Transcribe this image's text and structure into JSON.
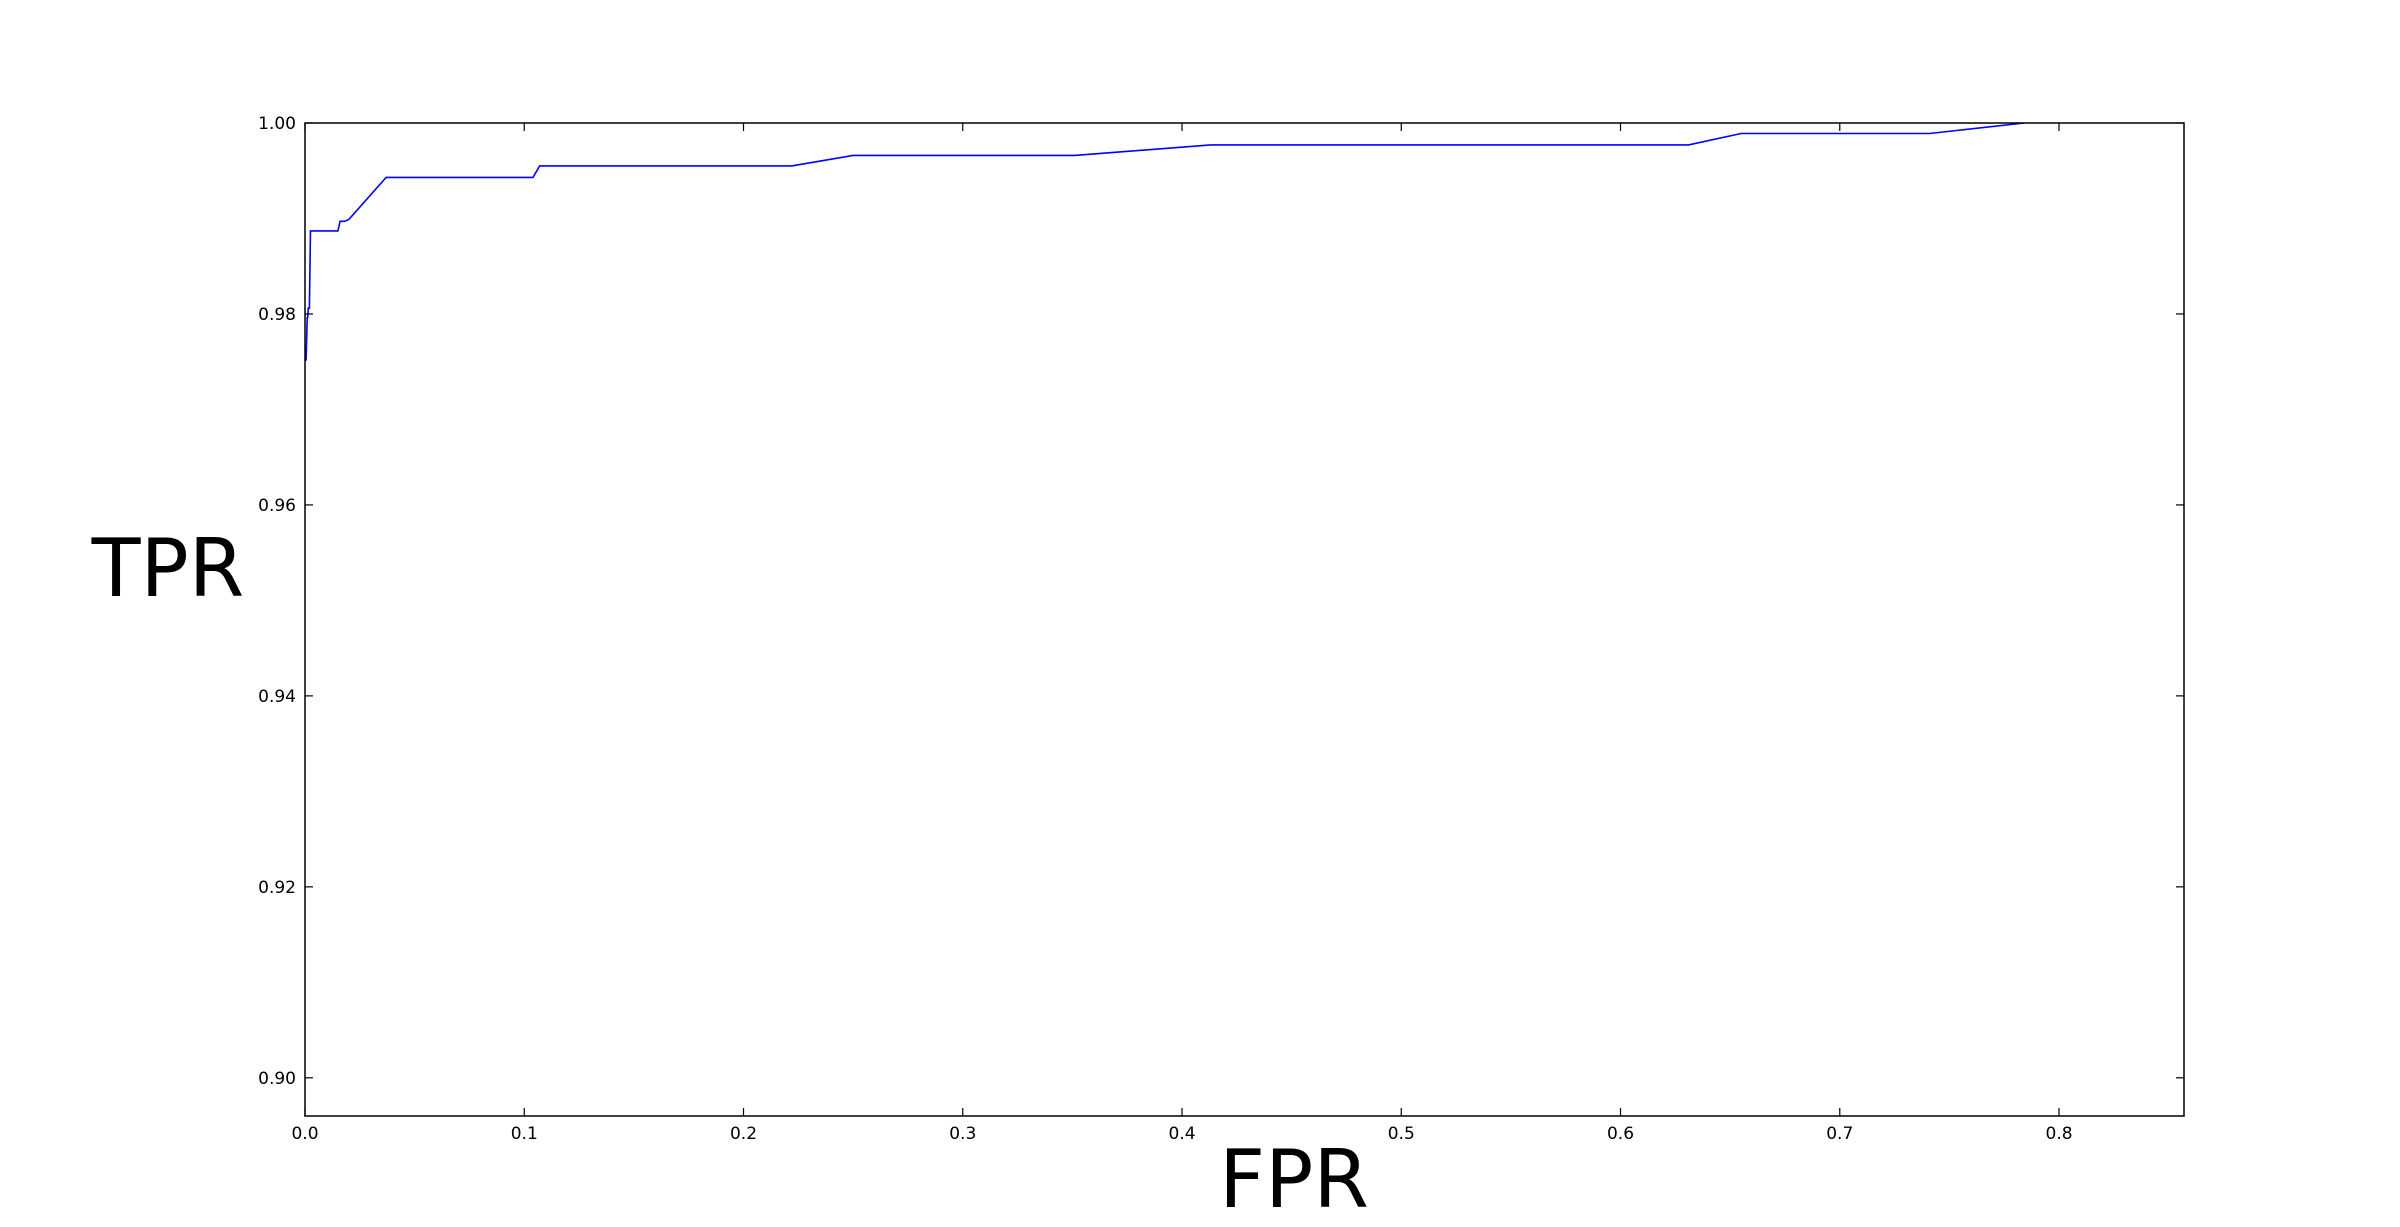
{
  "chart_data": {
    "type": "line",
    "title": "",
    "xlabel": "FPR",
    "ylabel": "TPR",
    "xlim": [
      0.0,
      0.857
    ],
    "ylim": [
      0.896,
      1.0
    ],
    "xticks": [
      0.0,
      0.1,
      0.2,
      0.3,
      0.4,
      0.5,
      0.6,
      0.7,
      0.8
    ],
    "xtick_labels": [
      "0.0",
      "0.1",
      "0.2",
      "0.3",
      "0.4",
      "0.5",
      "0.6",
      "0.7",
      "0.8"
    ],
    "yticks": [
      0.9,
      0.92,
      0.94,
      0.96,
      0.98,
      1.0
    ],
    "ytick_labels": [
      "0.90",
      "0.92",
      "0.94",
      "0.96",
      "0.98",
      "1.00"
    ],
    "grid": false,
    "line_color": "#0000ff",
    "series": [
      {
        "x": [
          0.0,
          0.0005,
          0.001,
          0.0012,
          0.0015,
          0.002,
          0.0025,
          0.003,
          0.015,
          0.016,
          0.018,
          0.02,
          0.037,
          0.104,
          0.107,
          0.222,
          0.25,
          0.351,
          0.413,
          0.631,
          0.655,
          0.741,
          0.784
        ],
        "y": [
          0.9752,
          0.9752,
          0.9796,
          0.9796,
          0.9806,
          0.9806,
          0.9887,
          0.9887,
          0.9887,
          0.9897,
          0.9897,
          0.9899,
          0.9943,
          0.9943,
          0.9955,
          0.9955,
          0.9966,
          0.9966,
          0.9977,
          0.9977,
          0.9989,
          0.9989,
          1.0
        ]
      }
    ]
  }
}
